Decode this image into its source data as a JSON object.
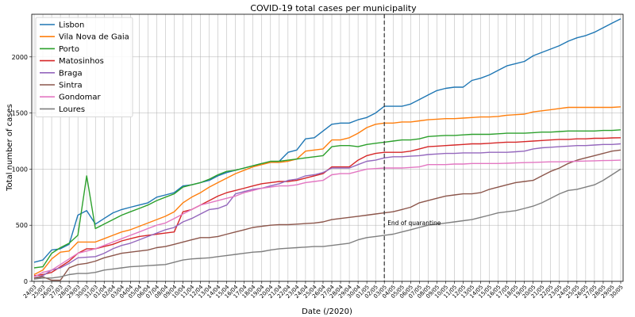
{
  "chart_data": {
    "type": "line",
    "title": "COVID-19 total cases per municipality",
    "xlabel": "Date (/2020)",
    "ylabel": "Total number of cases",
    "ylim": [
      0,
      2380
    ],
    "yticks": [
      0,
      500,
      1000,
      1500,
      2000
    ],
    "grid": true,
    "legend_position": "top-left",
    "annotation": {
      "text": "End of quarantine",
      "x": "03/05"
    },
    "categories": [
      "24/03",
      "25/03",
      "26/03",
      "27/03",
      "28/03",
      "29/03",
      "30/03",
      "31/03",
      "01/04",
      "02/04",
      "03/04",
      "04/04",
      "05/04",
      "06/04",
      "07/04",
      "08/04",
      "09/04",
      "10/04",
      "11/04",
      "12/04",
      "13/04",
      "14/04",
      "15/04",
      "16/04",
      "17/04",
      "18/04",
      "19/04",
      "20/04",
      "21/04",
      "22/04",
      "23/04",
      "24/04",
      "25/04",
      "26/04",
      "27/04",
      "28/04",
      "29/04",
      "30/04",
      "01/05",
      "02/05",
      "03/05",
      "04/05",
      "05/05",
      "06/05",
      "07/05",
      "08/05",
      "09/05",
      "10/05",
      "11/05",
      "12/05",
      "13/05",
      "14/05",
      "15/05",
      "16/05",
      "17/05",
      "18/05",
      "19/05",
      "20/05",
      "21/05",
      "22/05",
      "23/05",
      "24/05",
      "25/05",
      "26/05",
      "27/05",
      "28/05",
      "29/05",
      "30/05"
    ],
    "series": [
      {
        "name": "Lisbon",
        "color": "#1f77b4",
        "values": [
          170,
          190,
          280,
          290,
          330,
          590,
          630,
          510,
          560,
          610,
          640,
          660,
          680,
          700,
          750,
          770,
          790,
          850,
          860,
          880,
          900,
          940,
          970,
          990,
          1010,
          1030,
          1050,
          1060,
          1070,
          1150,
          1170,
          1270,
          1280,
          1340,
          1400,
          1410,
          1410,
          1440,
          1460,
          1500,
          1560,
          1560,
          1560,
          1580,
          1620,
          1660,
          1700,
          1720,
          1730,
          1730,
          1790,
          1810,
          1840,
          1880,
          1920,
          1940,
          1960,
          2010,
          2040,
          2070,
          2100,
          2140,
          2170,
          2190,
          2220,
          2260,
          2300,
          2340
        ]
      },
      {
        "name": "Vila Nova de Gaia",
        "color": "#ff7f0e",
        "values": [
          60,
          100,
          200,
          260,
          270,
          350,
          350,
          350,
          380,
          410,
          440,
          460,
          490,
          520,
          550,
          580,
          620,
          700,
          750,
          790,
          840,
          880,
          920,
          960,
          990,
          1020,
          1040,
          1060,
          1060,
          1070,
          1090,
          1160,
          1170,
          1180,
          1260,
          1260,
          1280,
          1320,
          1370,
          1400,
          1410,
          1410,
          1420,
          1420,
          1430,
          1440,
          1445,
          1450,
          1450,
          1455,
          1460,
          1465,
          1465,
          1470,
          1480,
          1485,
          1490,
          1510,
          1520,
          1530,
          1540,
          1550,
          1550,
          1550,
          1550,
          1550,
          1550,
          1555
        ]
      },
      {
        "name": "Porto",
        "color": "#2ca02c",
        "values": [
          120,
          130,
          250,
          300,
          340,
          410,
          940,
          470,
          510,
          550,
          590,
          620,
          650,
          680,
          720,
          750,
          780,
          840,
          860,
          880,
          910,
          950,
          980,
          990,
          1010,
          1030,
          1050,
          1070,
          1070,
          1080,
          1090,
          1100,
          1110,
          1120,
          1200,
          1210,
          1210,
          1200,
          1220,
          1230,
          1240,
          1250,
          1260,
          1260,
          1270,
          1290,
          1295,
          1300,
          1300,
          1305,
          1310,
          1310,
          1310,
          1315,
          1320,
          1320,
          1320,
          1325,
          1330,
          1330,
          1335,
          1340,
          1340,
          1340,
          1340,
          1345,
          1345,
          1350
        ]
      },
      {
        "name": "Matosinhos",
        "color": "#d62728",
        "values": [
          50,
          60,
          80,
          130,
          180,
          250,
          290,
          290,
          310,
          330,
          360,
          380,
          400,
          410,
          420,
          430,
          440,
          620,
          640,
          680,
          720,
          760,
          790,
          810,
          830,
          850,
          870,
          880,
          890,
          890,
          900,
          920,
          940,
          960,
          1020,
          1020,
          1020,
          1080,
          1120,
          1140,
          1150,
          1150,
          1150,
          1160,
          1180,
          1200,
          1205,
          1210,
          1215,
          1220,
          1225,
          1225,
          1230,
          1235,
          1240,
          1240,
          1245,
          1250,
          1255,
          1260,
          1265,
          1265,
          1270,
          1270,
          1275,
          1275,
          1278,
          1280
        ]
      },
      {
        "name": "Braga",
        "color": "#9467bd",
        "values": [
          30,
          50,
          100,
          120,
          160,
          210,
          215,
          220,
          250,
          290,
          320,
          340,
          370,
          400,
          430,
          460,
          480,
          530,
          560,
          600,
          640,
          650,
          680,
          780,
          800,
          820,
          830,
          850,
          870,
          900,
          910,
          940,
          950,
          970,
          1010,
          1010,
          1010,
          1040,
          1070,
          1080,
          1100,
          1110,
          1110,
          1115,
          1120,
          1130,
          1135,
          1140,
          1140,
          1145,
          1145,
          1145,
          1150,
          1150,
          1150,
          1155,
          1160,
          1180,
          1190,
          1195,
          1200,
          1205,
          1210,
          1210,
          1215,
          1220,
          1220,
          1225
        ]
      },
      {
        "name": "Sintra",
        "color": "#8c564b",
        "values": [
          30,
          40,
          10,
          10,
          120,
          150,
          160,
          180,
          210,
          230,
          250,
          260,
          270,
          280,
          300,
          310,
          330,
          350,
          370,
          390,
          390,
          400,
          420,
          440,
          460,
          480,
          490,
          500,
          505,
          505,
          510,
          515,
          520,
          530,
          550,
          560,
          570,
          580,
          590,
          600,
          610,
          620,
          640,
          660,
          700,
          720,
          740,
          760,
          770,
          780,
          780,
          790,
          820,
          840,
          860,
          880,
          890,
          900,
          940,
          980,
          1010,
          1050,
          1080,
          1100,
          1120,
          1140,
          1160,
          1170
        ]
      },
      {
        "name": "Gondomar",
        "color": "#e377c2",
        "values": [
          40,
          80,
          100,
          150,
          200,
          250,
          270,
          290,
          320,
          350,
          380,
          410,
          440,
          470,
          500,
          520,
          560,
          600,
          640,
          680,
          700,
          720,
          740,
          760,
          790,
          810,
          830,
          840,
          850,
          850,
          860,
          880,
          890,
          900,
          950,
          960,
          960,
          980,
          1000,
          1005,
          1010,
          1010,
          1010,
          1015,
          1020,
          1040,
          1040,
          1040,
          1045,
          1045,
          1050,
          1050,
          1050,
          1050,
          1052,
          1055,
          1058,
          1060,
          1062,
          1065,
          1065,
          1068,
          1070,
          1072,
          1074,
          1076,
          1078,
          1080
        ]
      },
      {
        "name": "Loures",
        "color": "#7f7f7f",
        "values": [
          20,
          30,
          30,
          40,
          60,
          70,
          70,
          80,
          100,
          110,
          120,
          130,
          135,
          140,
          145,
          150,
          170,
          190,
          200,
          205,
          210,
          220,
          230,
          240,
          250,
          260,
          265,
          280,
          290,
          295,
          300,
          305,
          310,
          310,
          320,
          330,
          340,
          370,
          390,
          400,
          410,
          420,
          440,
          460,
          480,
          500,
          510,
          520,
          530,
          540,
          550,
          570,
          590,
          610,
          620,
          630,
          650,
          670,
          700,
          740,
          780,
          810,
          820,
          840,
          860,
          900,
          950,
          1000
        ]
      }
    ]
  }
}
